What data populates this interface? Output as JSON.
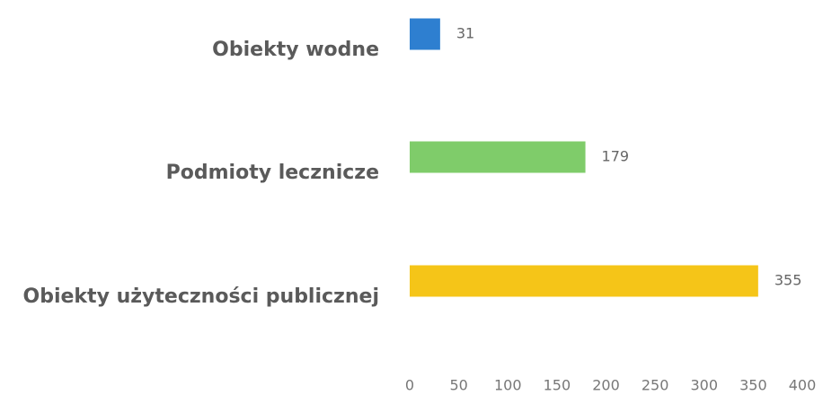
{
  "chart_data": {
    "type": "hbar",
    "categories": [
      "Obiekty wodne",
      "Podmioty lecznicze",
      "Obiekty użyteczności publicznej"
    ],
    "values": [
      31,
      179,
      355
    ],
    "colors": [
      "#2e7fd0",
      "#7fcc6a",
      "#f5c518"
    ],
    "xlim": [
      0,
      400
    ],
    "xticks": [
      0,
      50,
      100,
      150,
      200,
      250,
      300,
      350,
      400
    ],
    "grid": false
  }
}
